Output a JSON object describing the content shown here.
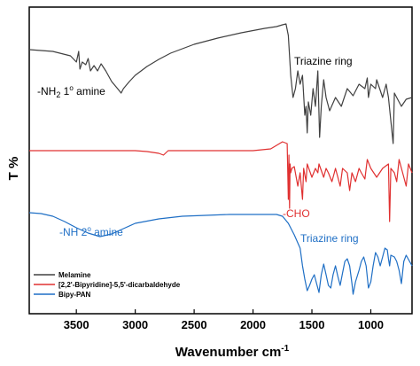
{
  "chart_data": {
    "type": "line",
    "title": "",
    "xlabel_main": "Wavenumber cm",
    "xlabel_sup": "-1",
    "ylabel": "T %",
    "x_range": [
      3900,
      650
    ],
    "x_ticks": [
      3500,
      3000,
      2500,
      2000,
      1500,
      1000
    ],
    "grid": false,
    "y_axis": "arbitrary transmittance, spectra vertically offset, no tick labels",
    "legend_position": "bottom-left",
    "series": [
      {
        "name": "Melamine",
        "color": "#404040",
        "points": [
          [
            3900,
            56
          ],
          [
            3700,
            58
          ],
          [
            3550,
            63
          ],
          [
            3500,
            70
          ],
          [
            3480,
            58
          ],
          [
            3470,
            78
          ],
          [
            3450,
            70
          ],
          [
            3420,
            73
          ],
          [
            3400,
            66
          ],
          [
            3380,
            80
          ],
          [
            3350,
            74
          ],
          [
            3320,
            80
          ],
          [
            3290,
            72
          ],
          [
            3250,
            80
          ],
          [
            3200,
            92
          ],
          [
            3150,
            100
          ],
          [
            3120,
            105
          ],
          [
            3100,
            100
          ],
          [
            3050,
            92
          ],
          [
            3000,
            85
          ],
          [
            2900,
            75
          ],
          [
            2800,
            67
          ],
          [
            2700,
            60
          ],
          [
            2500,
            50
          ],
          [
            2300,
            43
          ],
          [
            2100,
            37
          ],
          [
            1900,
            32
          ],
          [
            1800,
            30
          ],
          [
            1750,
            28
          ],
          [
            1720,
            27
          ],
          [
            1700,
            40
          ],
          [
            1680,
            85
          ],
          [
            1660,
            110
          ],
          [
            1640,
            100
          ],
          [
            1620,
            80
          ],
          [
            1600,
            95
          ],
          [
            1580,
            85
          ],
          [
            1560,
            130
          ],
          [
            1550,
            120
          ],
          [
            1540,
            150
          ],
          [
            1530,
            115
          ],
          [
            1510,
            130
          ],
          [
            1490,
            100
          ],
          [
            1470,
            120
          ],
          [
            1450,
            80
          ],
          [
            1435,
            155
          ],
          [
            1420,
            120
          ],
          [
            1400,
            90
          ],
          [
            1380,
            110
          ],
          [
            1350,
            125
          ],
          [
            1300,
            110
          ],
          [
            1250,
            120
          ],
          [
            1200,
            100
          ],
          [
            1150,
            108
          ],
          [
            1100,
            95
          ],
          [
            1050,
            100
          ],
          [
            1030,
            88
          ],
          [
            1020,
            110
          ],
          [
            1000,
            95
          ],
          [
            960,
            100
          ],
          [
            950,
            90
          ],
          [
            900,
            110
          ],
          [
            870,
            95
          ],
          [
            850,
            110
          ],
          [
            810,
            162
          ],
          [
            800,
            105
          ],
          [
            780,
            110
          ],
          [
            740,
            120
          ],
          [
            700,
            112
          ],
          [
            650,
            110
          ]
        ]
      },
      {
        "name": "[2,2'-Bipyridine]-5,5'-dicarbaldehyde",
        "color": "#e03030",
        "points": [
          [
            3900,
            170
          ],
          [
            3500,
            170
          ],
          [
            3200,
            170
          ],
          [
            3000,
            170
          ],
          [
            2900,
            171
          ],
          [
            2800,
            173
          ],
          [
            2760,
            175
          ],
          [
            2720,
            170
          ],
          [
            2600,
            170
          ],
          [
            2400,
            170
          ],
          [
            2200,
            170
          ],
          [
            2000,
            170
          ],
          [
            1850,
            168
          ],
          [
            1750,
            160
          ],
          [
            1710,
            162
          ],
          [
            1700,
            225
          ],
          [
            1695,
            175
          ],
          [
            1690,
            235
          ],
          [
            1685,
            185
          ],
          [
            1680,
            195
          ],
          [
            1670,
            190
          ],
          [
            1650,
            188
          ],
          [
            1620,
            210
          ],
          [
            1600,
            195
          ],
          [
            1580,
            225
          ],
          [
            1570,
            190
          ],
          [
            1550,
            205
          ],
          [
            1540,
            185
          ],
          [
            1500,
            200
          ],
          [
            1470,
            190
          ],
          [
            1450,
            195
          ],
          [
            1440,
            185
          ],
          [
            1400,
            200
          ],
          [
            1380,
            190
          ],
          [
            1360,
            195
          ],
          [
            1330,
            205
          ],
          [
            1310,
            195
          ],
          [
            1300,
            190
          ],
          [
            1280,
            200
          ],
          [
            1260,
            210
          ],
          [
            1240,
            190
          ],
          [
            1200,
            195
          ],
          [
            1180,
            215
          ],
          [
            1160,
            195
          ],
          [
            1130,
            205
          ],
          [
            1100,
            190
          ],
          [
            1080,
            195
          ],
          [
            1050,
            202
          ],
          [
            1030,
            180
          ],
          [
            1000,
            190
          ],
          [
            950,
            200
          ],
          [
            900,
            190
          ],
          [
            850,
            185
          ],
          [
            840,
            250
          ],
          [
            830,
            190
          ],
          [
            800,
            195
          ],
          [
            780,
            205
          ],
          [
            760,
            180
          ],
          [
            730,
            195
          ],
          [
            700,
            210
          ],
          [
            680,
            185
          ],
          [
            650,
            195
          ]
        ]
      },
      {
        "name": "Bipy-PAN",
        "color": "#1f6fc5",
        "points": [
          [
            3900,
            240
          ],
          [
            3800,
            241
          ],
          [
            3700,
            244
          ],
          [
            3600,
            250
          ],
          [
            3500,
            257
          ],
          [
            3400,
            263
          ],
          [
            3300,
            267
          ],
          [
            3200,
            264
          ],
          [
            3100,
            258
          ],
          [
            3000,
            252
          ],
          [
            2800,
            247
          ],
          [
            2600,
            244
          ],
          [
            2400,
            243
          ],
          [
            2200,
            242
          ],
          [
            2000,
            242
          ],
          [
            1800,
            242
          ],
          [
            1750,
            244
          ],
          [
            1700,
            252
          ],
          [
            1650,
            265
          ],
          [
            1600,
            280
          ],
          [
            1580,
            300
          ],
          [
            1560,
            315
          ],
          [
            1540,
            328
          ],
          [
            1520,
            322
          ],
          [
            1500,
            315
          ],
          [
            1480,
            310
          ],
          [
            1460,
            320
          ],
          [
            1440,
            330
          ],
          [
            1420,
            310
          ],
          [
            1400,
            298
          ],
          [
            1380,
            310
          ],
          [
            1360,
            322
          ],
          [
            1340,
            325
          ],
          [
            1320,
            310
          ],
          [
            1300,
            300
          ],
          [
            1280,
            312
          ],
          [
            1260,
            322
          ],
          [
            1240,
            308
          ],
          [
            1220,
            295
          ],
          [
            1200,
            292
          ],
          [
            1180,
            300
          ],
          [
            1160,
            320
          ],
          [
            1150,
            332
          ],
          [
            1130,
            318
          ],
          [
            1100,
            305
          ],
          [
            1080,
            295
          ],
          [
            1060,
            290
          ],
          [
            1040,
            300
          ],
          [
            1020,
            325
          ],
          [
            1000,
            318
          ],
          [
            980,
            300
          ],
          [
            960,
            285
          ],
          [
            940,
            290
          ],
          [
            920,
            300
          ],
          [
            900,
            290
          ],
          [
            880,
            280
          ],
          [
            860,
            282
          ],
          [
            850,
            292
          ],
          [
            840,
            300
          ],
          [
            830,
            288
          ],
          [
            800,
            290
          ],
          [
            780,
            295
          ],
          [
            760,
            305
          ],
          [
            740,
            320
          ],
          [
            720,
            295
          ],
          [
            700,
            288
          ],
          [
            650,
            300
          ]
        ]
      }
    ],
    "annotations": [
      {
        "text": "-NH",
        "sub": "2",
        "rest": " 1",
        "sup": "o",
        "tail": " amine",
        "color": "#000000"
      },
      {
        "text": "Triazine ring",
        "color": "#000000"
      },
      {
        "text": "-CHO",
        "color": "#e03030"
      },
      {
        "text": "-NH 2",
        "sup": "o",
        "tail": " amine",
        "color": "#1f6fc5"
      },
      {
        "text": "Triazine ring",
        "color": "#1f6fc5"
      }
    ]
  }
}
